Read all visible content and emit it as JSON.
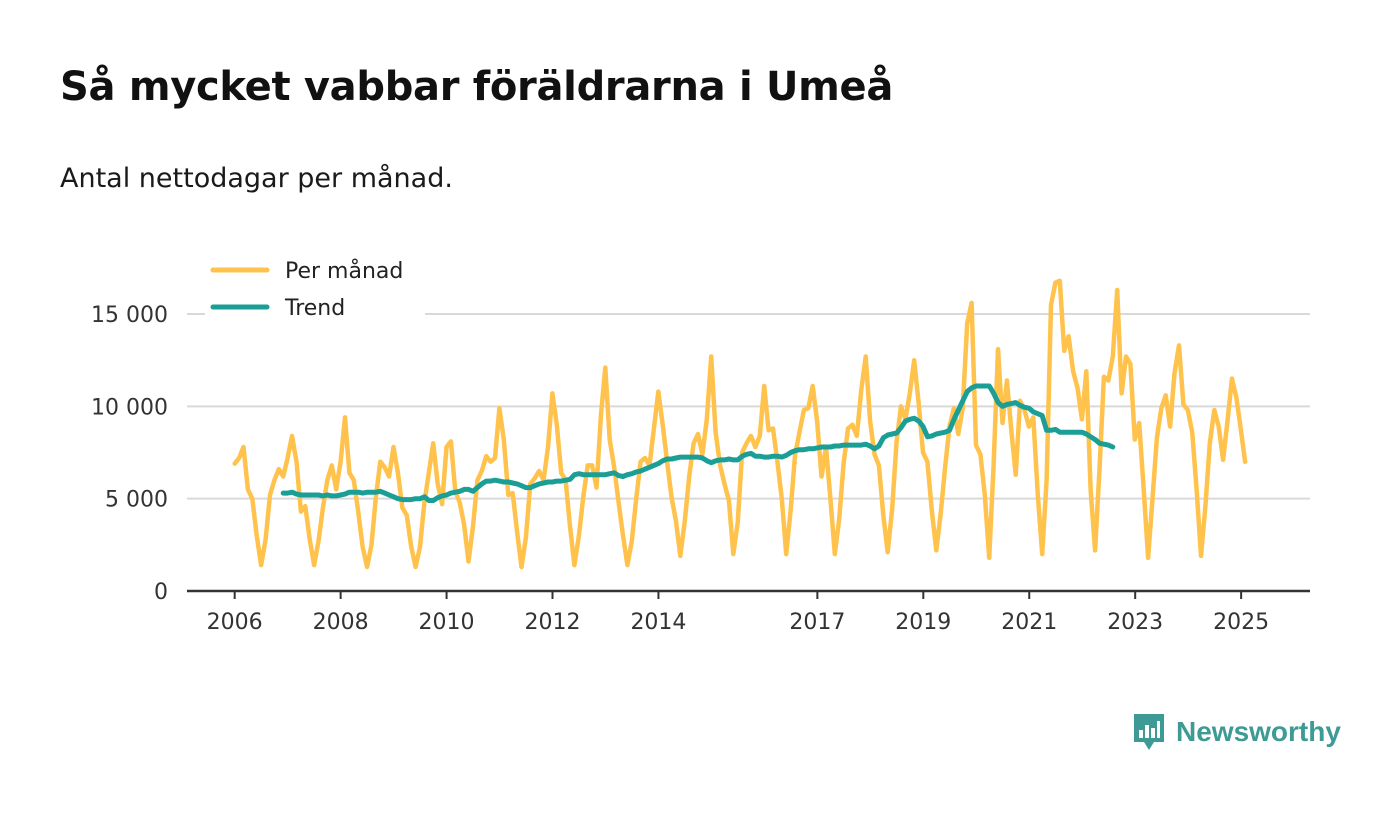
{
  "header": {
    "title": "Så mycket vabbar föräldrarna i Umeå",
    "subtitle": "Antal nettodagar per månad."
  },
  "brand": {
    "name": "Newsworthy",
    "color": "#3d9a94"
  },
  "colors": {
    "per_month": "#ffc34d",
    "trend": "#1a9e96",
    "grid": "#d9d9d9",
    "axis": "#333333"
  },
  "chart_data": {
    "type": "line",
    "title": "Så mycket vabbar föräldrarna i Umeå",
    "subtitle": "Antal nettodagar per månad.",
    "xlabel": "",
    "ylabel": "",
    "x_unit": "year (decimal)",
    "xlim": [
      2005.1,
      2026.3
    ],
    "ylim": [
      0,
      15000
    ],
    "y_ticks": [
      0,
      5000,
      10000,
      15000
    ],
    "y_tick_labels": [
      "0",
      "5 000",
      "10 000",
      "15 000"
    ],
    "x_ticks": [
      2006,
      2008,
      2010,
      2012,
      2014,
      2017,
      2019,
      2021,
      2023,
      2025
    ],
    "x_tick_labels": [
      "2006",
      "2008",
      "2010",
      "2012",
      "2014",
      "2017",
      "2019",
      "2021",
      "2023",
      "2025"
    ],
    "grid": true,
    "legend_position": "top-left",
    "series": [
      {
        "name": "Per månad",
        "color": "#ffc34d",
        "x_start": 2006.0,
        "x_step": 0.0833,
        "values": [
          6900,
          7200,
          7800,
          5500,
          5000,
          3000,
          1400,
          2800,
          5200,
          6000,
          6600,
          6200,
          7200,
          8400,
          7000,
          4300,
          4600,
          2800,
          1400,
          2700,
          4500,
          6000,
          6800,
          5500,
          7000,
          9400,
          6400,
          6000,
          4300,
          2400,
          1300,
          2500,
          5100,
          7000,
          6700,
          6200,
          7800,
          6400,
          4500,
          4100,
          2400,
          1300,
          2400,
          4800,
          6400,
          8000,
          5800,
          4700,
          7800,
          8100,
          5400,
          4800,
          3600,
          1600,
          3500,
          6000,
          6500,
          7300,
          7000,
          7200,
          9900,
          8200,
          5200,
          5300,
          3200,
          1300,
          2900,
          5800,
          6100,
          6500,
          6000,
          7800,
          10700,
          9000,
          6400,
          6000,
          3500,
          1400,
          3000,
          5100,
          6800,
          6800,
          5600,
          9500,
          12100,
          8200,
          6700,
          4800,
          3000,
          1400,
          2700,
          5000,
          7000,
          7200,
          6800,
          8800,
          10800,
          9000,
          7000,
          5100,
          3800,
          1900,
          3800,
          6200,
          8000,
          8500,
          7400,
          9300,
          12700,
          8600,
          6800,
          5800,
          4900,
          2000,
          3700,
          7500,
          8000,
          8400,
          7800,
          8400,
          11100,
          8700,
          8800,
          7000,
          5000,
          2000,
          4400,
          7400,
          8600,
          9800,
          9900,
          11100,
          9200,
          6200,
          7800,
          5000,
          2000,
          3900,
          6900,
          8800,
          9000,
          8400,
          10900,
          12700,
          9200,
          7400,
          6800,
          4100,
          2100,
          4400,
          8100,
          10000,
          9300,
          10700,
          12500,
          10200,
          7500,
          7000,
          4300,
          2200,
          4200,
          6700,
          8900,
          9900,
          8500,
          9900,
          14500,
          15600,
          7900,
          7400,
          5200,
          1800,
          6800,
          13100,
          9100,
          11400,
          8700,
          6300,
          10300,
          9800,
          8900,
          9400,
          5200,
          2000,
          6000,
          15500,
          16700,
          16800,
          13000,
          13800,
          11900,
          11000,
          9300,
          11900,
          5400,
          2200,
          6600,
          11600,
          11400,
          12700,
          16300,
          10700,
          12700,
          12300,
          8200,
          9100,
          5500,
          1800,
          5000,
          8300,
          9900,
          10600,
          8900,
          11800,
          13300,
          10100,
          9800,
          8600,
          5500,
          1900,
          4600,
          8000,
          9800,
          8900,
          7100,
          9200,
          11500,
          10500,
          8800,
          7000
        ]
      },
      {
        "name": "Trend",
        "color": "#1a9e96",
        "x_start": 2006.917,
        "x_step": 0.0833,
        "values": [
          5300,
          5300,
          5350,
          5250,
          5200,
          5200,
          5200,
          5200,
          5200,
          5150,
          5200,
          5150,
          5150,
          5200,
          5250,
          5350,
          5350,
          5350,
          5300,
          5350,
          5350,
          5350,
          5400,
          5300,
          5200,
          5100,
          5000,
          4950,
          4950,
          4950,
          5000,
          5000,
          5100,
          4900,
          4900,
          5050,
          5150,
          5200,
          5300,
          5350,
          5400,
          5500,
          5500,
          5400,
          5600,
          5800,
          5950,
          5950,
          6000,
          5950,
          5900,
          5900,
          5850,
          5800,
          5700,
          5600,
          5600,
          5700,
          5800,
          5850,
          5900,
          5900,
          5950,
          5950,
          6000,
          6050,
          6300,
          6350,
          6300,
          6300,
          6300,
          6300,
          6300,
          6300,
          6350,
          6400,
          6250,
          6200,
          6300,
          6350,
          6450,
          6500,
          6600,
          6700,
          6800,
          6900,
          7050,
          7150,
          7150,
          7200,
          7250,
          7250,
          7250,
          7250,
          7250,
          7200,
          7050,
          6950,
          7050,
          7100,
          7100,
          7150,
          7100,
          7100,
          7300,
          7400,
          7450,
          7300,
          7300,
          7250,
          7250,
          7300,
          7300,
          7250,
          7350,
          7500,
          7600,
          7650,
          7650,
          7700,
          7700,
          7750,
          7800,
          7800,
          7800,
          7850,
          7850,
          7900,
          7900,
          7900,
          7900,
          7900,
          7950,
          7850,
          7700,
          7850,
          8300,
          8450,
          8500,
          8550,
          8850,
          9200,
          9300,
          9350,
          9200,
          8900,
          8350,
          8400,
          8500,
          8550,
          8600,
          8700,
          9300,
          9800,
          10300,
          10800,
          11000,
          11100,
          11100,
          11100,
          11100,
          10700,
          10200,
          10000,
          10100,
          10150,
          10200,
          10050,
          9950,
          9900,
          9700,
          9600,
          9500,
          8700,
          8700,
          8750,
          8600,
          8600,
          8600,
          8600,
          8600,
          8600,
          8500,
          8350,
          8200,
          8000,
          7950,
          7900,
          7800
        ]
      }
    ]
  }
}
